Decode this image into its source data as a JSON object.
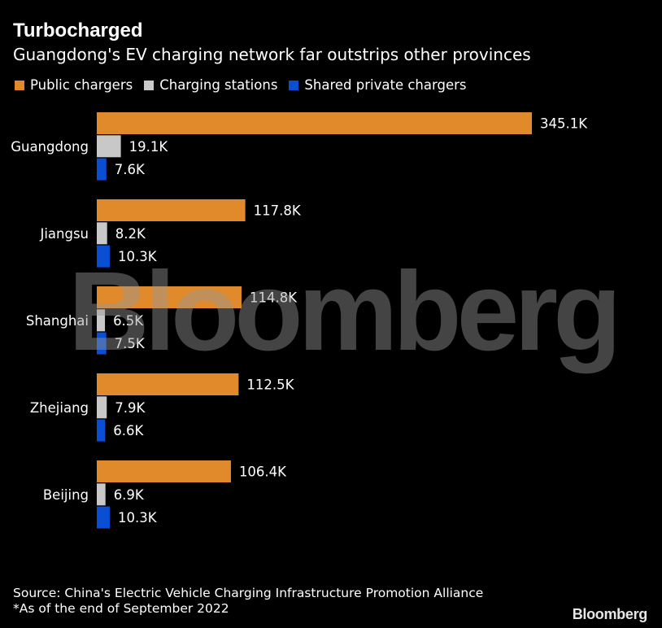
{
  "title": "Turbocharged",
  "subtitle": "Guangdong's EV charging network far outstrips other provinces",
  "source": "Source: China's Electric Vehicle Charging Infrastructure Promotion Alliance",
  "note": "*As of the end of September 2022",
  "brand": "Bloomberg",
  "watermark": "Bloomberg",
  "chart_data": {
    "type": "bar",
    "orientation": "horizontal",
    "categories": [
      "Guangdong",
      "Jiangsu",
      "Shanghai",
      "Zhejiang",
      "Beijing"
    ],
    "series": [
      {
        "name": "Public chargers",
        "color": "#e08a2c",
        "values": [
          345.1,
          117.8,
          114.8,
          112.5,
          106.4
        ],
        "labels": [
          "345.1K",
          "117.8K",
          "114.8K",
          "112.5K",
          "106.4K"
        ]
      },
      {
        "name": "Charging stations",
        "color": "#c8c8c8",
        "values": [
          19.1,
          8.2,
          6.5,
          7.9,
          6.9
        ],
        "labels": [
          "19.1K",
          "8.2K",
          "6.5K",
          "7.9K",
          "6.9K"
        ]
      },
      {
        "name": "Shared private chargers",
        "color": "#0a4ed4",
        "values": [
          7.6,
          10.3,
          7.5,
          6.6,
          10.3
        ],
        "labels": [
          "7.6K",
          "10.3K",
          "7.5K",
          "6.6K",
          "10.3K"
        ]
      }
    ],
    "legend_position": "top-left",
    "grid": false
  }
}
